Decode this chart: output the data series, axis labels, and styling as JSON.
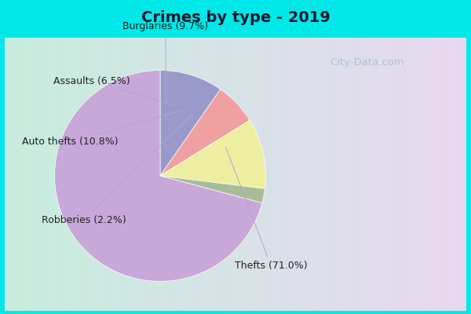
{
  "title": "Crimes by type - 2019",
  "labels": [
    "Burglaries",
    "Assaults",
    "Auto thefts",
    "Robberies",
    "Thefts"
  ],
  "values": [
    9.7,
    6.5,
    10.8,
    2.2,
    71.0
  ],
  "colors": [
    "#9999cc",
    "#f0a0a0",
    "#eeeea0",
    "#aabb99",
    "#c8a8d8"
  ],
  "label_texts": [
    "Burglaries (9.7%)",
    "Assaults (6.5%)",
    "Auto thefts (10.8%)",
    "Robberies (2.2%)",
    "Thefts (71.0%)"
  ],
  "bg_outer": "#00e8e8",
  "title_fontsize": 14,
  "label_fontsize": 9,
  "watermark": "City-Data.com",
  "startangle": 90
}
